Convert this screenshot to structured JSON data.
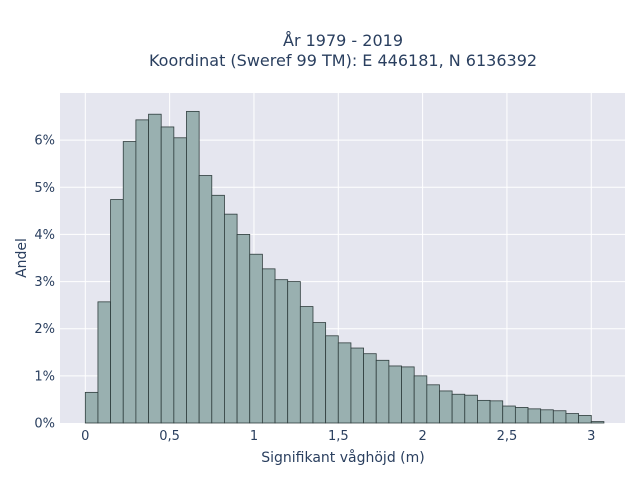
{
  "chart_data": {
    "type": "bar",
    "title": "År 1979 - 2019",
    "subtitle": "Koordinat (Sweref 99 TM): E 446181, N 6136392",
    "xlabel": "Signifikant våghöjd (m)",
    "ylabel": "Andel",
    "xlim": [
      -0.15,
      3.2
    ],
    "ylim": [
      0,
      0.07
    ],
    "bin_width": 0.075,
    "bin_starts": [
      0.0,
      0.075,
      0.15,
      0.225,
      0.3,
      0.375,
      0.45,
      0.525,
      0.6,
      0.675,
      0.75,
      0.825,
      0.9,
      0.975,
      1.05,
      1.125,
      1.2,
      1.275,
      1.35,
      1.425,
      1.5,
      1.575,
      1.65,
      1.725,
      1.8,
      1.875,
      1.95,
      2.025,
      2.1,
      2.175,
      2.25,
      2.325,
      2.4,
      2.475,
      2.55,
      2.625,
      2.7,
      2.775,
      2.85,
      2.925,
      3.0
    ],
    "values": [
      0.0065,
      0.0257,
      0.0474,
      0.0597,
      0.0643,
      0.0655,
      0.0628,
      0.0605,
      0.0661,
      0.0525,
      0.0483,
      0.0443,
      0.04,
      0.0358,
      0.0327,
      0.0304,
      0.03,
      0.0247,
      0.0213,
      0.0185,
      0.017,
      0.0159,
      0.0147,
      0.0133,
      0.0121,
      0.0119,
      0.01,
      0.0081,
      0.0068,
      0.0061,
      0.0059,
      0.0048,
      0.0047,
      0.0036,
      0.0033,
      0.003,
      0.0028,
      0.0026,
      0.002,
      0.0016,
      0.0003
    ],
    "xticks": [
      0,
      0.5,
      1,
      1.5,
      2,
      2.5,
      3
    ],
    "xtick_labels": [
      "0",
      "0,5",
      "1",
      "1,5",
      "2",
      "2,5",
      "3"
    ],
    "yticks": [
      0,
      0.01,
      0.02,
      0.03,
      0.04,
      0.05,
      0.06
    ],
    "ytick_labels": [
      "0%",
      "1%",
      "2%",
      "3%",
      "4%",
      "5%",
      "6%"
    ],
    "grid": true,
    "legend": "none",
    "colors": {
      "bar_fill": "#99b0b0",
      "bar_stroke": "#2f3d3d",
      "plot_bg": "#e5e6ef",
      "grid": "#ffffff",
      "text": "#2a3f5f"
    }
  }
}
